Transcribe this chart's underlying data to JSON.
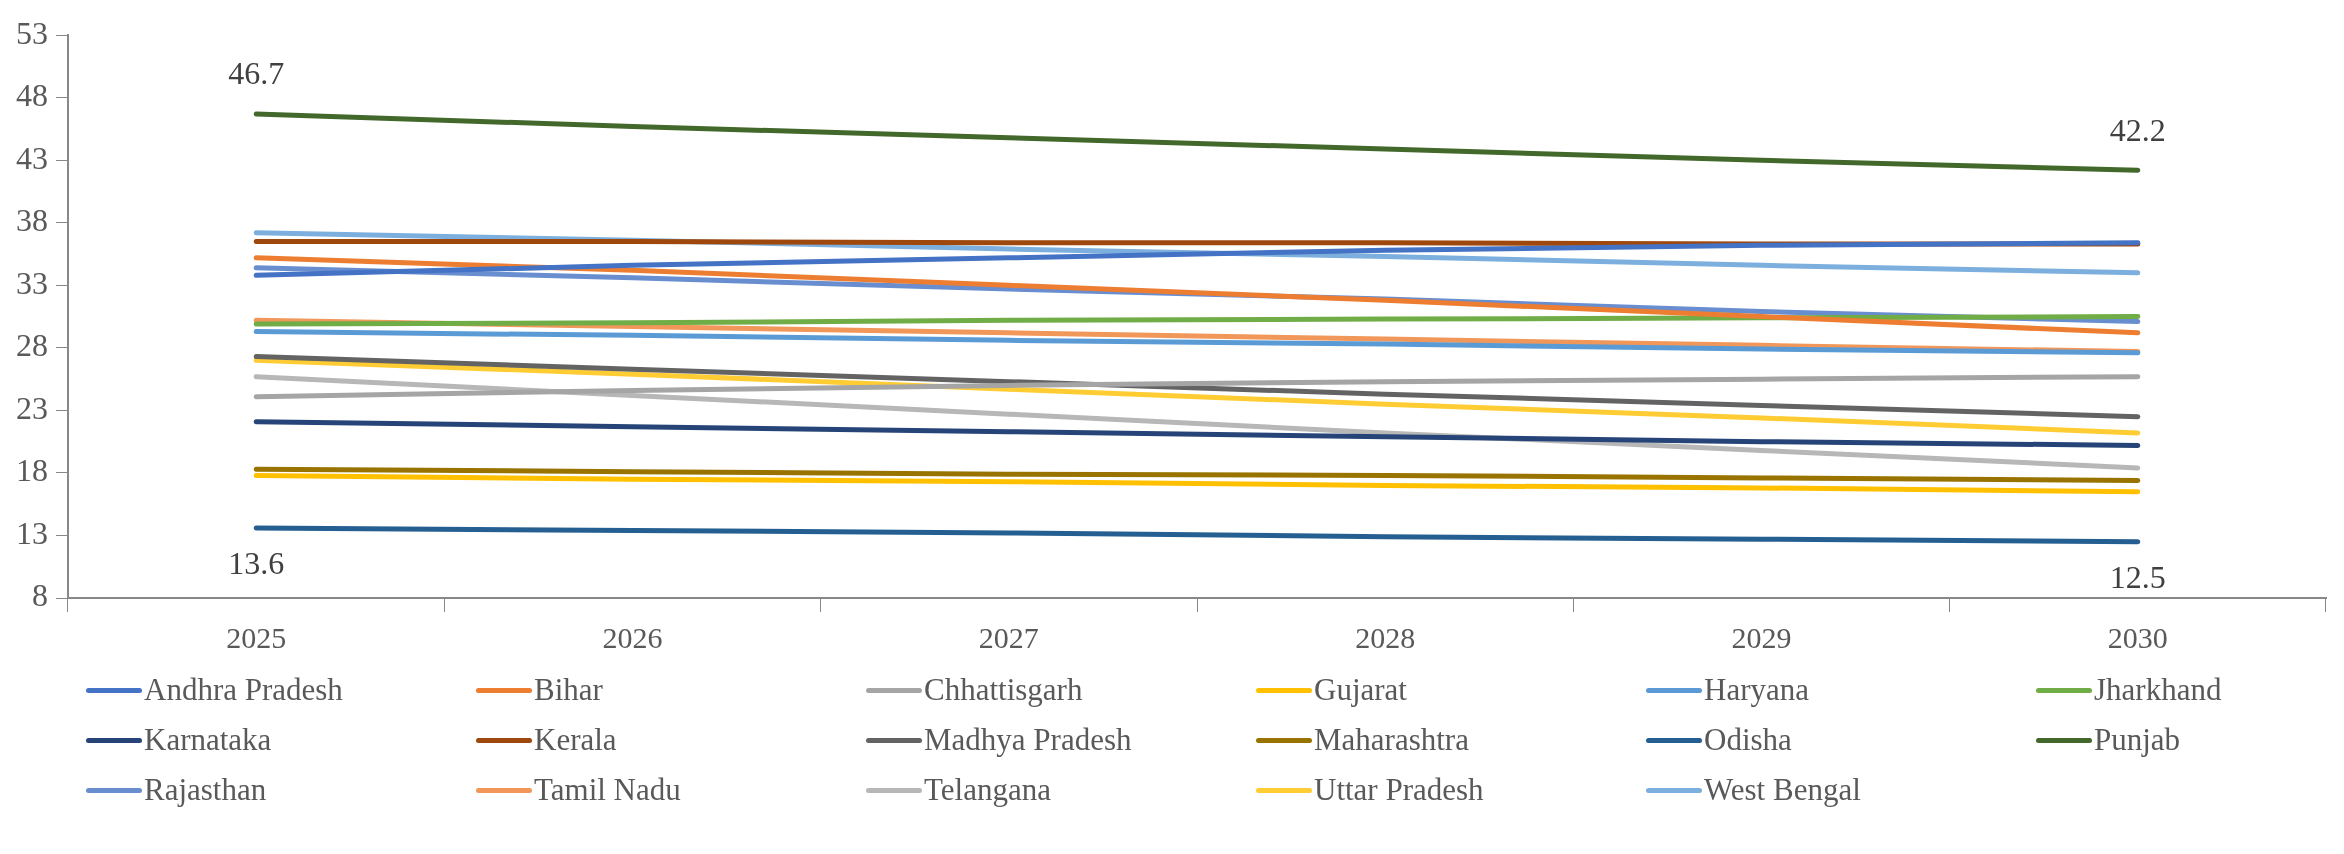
{
  "chart_data": {
    "type": "line",
    "categories": [
      "2025",
      "2026",
      "2027",
      "2028",
      "2029",
      "2030"
    ],
    "ylim": [
      8,
      53
    ],
    "yticks": [
      8,
      13,
      18,
      23,
      28,
      33,
      38,
      43,
      48,
      53
    ],
    "grid": false,
    "legend": "bottom",
    "marker": "none",
    "annotations": [
      {
        "text": "46.7",
        "x": "2025",
        "y": 46.7
      },
      {
        "text": "42.2",
        "x": "2030",
        "y": 42.2
      },
      {
        "text": "13.6",
        "x": "2025",
        "y": 13.6
      },
      {
        "text": "12.5",
        "x": "2030",
        "y": 12.5
      }
    ],
    "series": [
      {
        "name": "Andhra Pradesh",
        "color": "#4472c4",
        "values": [
          33.8,
          34.6,
          35.2,
          35.8,
          36.2,
          36.4
        ]
      },
      {
        "name": "Bihar",
        "color": "#ed7d31",
        "values": [
          35.2,
          34.2,
          33.0,
          31.8,
          30.5,
          29.2
        ]
      },
      {
        "name": "Chhattisgarh",
        "color": "#a5a5a5",
        "values": [
          24.1,
          24.6,
          25.0,
          25.3,
          25.5,
          25.7
        ]
      },
      {
        "name": "Gujarat",
        "color": "#ffc000",
        "values": [
          17.8,
          17.5,
          17.3,
          17.0,
          16.8,
          16.5
        ]
      },
      {
        "name": "Haryana",
        "color": "#5b9bd5",
        "values": [
          29.3,
          29.0,
          28.6,
          28.3,
          27.9,
          27.6
        ]
      },
      {
        "name": "Jharkhand",
        "color": "#70ad47",
        "values": [
          29.9,
          30.0,
          30.2,
          30.3,
          30.4,
          30.5
        ]
      },
      {
        "name": "Karnataka",
        "color": "#264478",
        "values": [
          22.1,
          21.7,
          21.3,
          20.9,
          20.5,
          20.2
        ]
      },
      {
        "name": "Kerala",
        "color": "#9e480e",
        "values": [
          36.5,
          36.5,
          36.4,
          36.4,
          36.3,
          36.3
        ]
      },
      {
        "name": "Madhya Pradesh",
        "color": "#636363",
        "values": [
          27.3,
          26.3,
          25.3,
          24.3,
          23.4,
          22.5
        ]
      },
      {
        "name": "Maharashtra",
        "color": "#997300",
        "values": [
          18.3,
          18.1,
          17.9,
          17.8,
          17.6,
          17.4
        ]
      },
      {
        "name": "Odisha",
        "color": "#255e91",
        "values": [
          13.6,
          13.4,
          13.2,
          12.9,
          12.7,
          12.5
        ]
      },
      {
        "name": "Punjab",
        "color": "#43682b",
        "values": [
          46.7,
          45.7,
          44.8,
          43.9,
          43.0,
          42.2
        ]
      },
      {
        "name": "Rajasthan",
        "color": "#698ed0",
        "values": [
          34.4,
          33.6,
          32.7,
          31.9,
          30.9,
          30.1
        ]
      },
      {
        "name": "Tamil Nadu",
        "color": "#f1975a",
        "values": [
          30.2,
          29.7,
          29.2,
          28.7,
          28.2,
          27.7
        ]
      },
      {
        "name": "Telangana",
        "color": "#b7b7b7",
        "values": [
          25.7,
          24.2,
          22.7,
          21.2,
          19.8,
          18.4
        ]
      },
      {
        "name": "Uttar Pradesh",
        "color": "#ffcd33",
        "values": [
          27.0,
          25.9,
          24.7,
          23.5,
          22.4,
          21.2
        ]
      },
      {
        "name": "West Bengal",
        "color": "#7cafdd",
        "values": [
          37.2,
          36.6,
          35.9,
          35.3,
          34.6,
          34.0
        ]
      }
    ]
  }
}
